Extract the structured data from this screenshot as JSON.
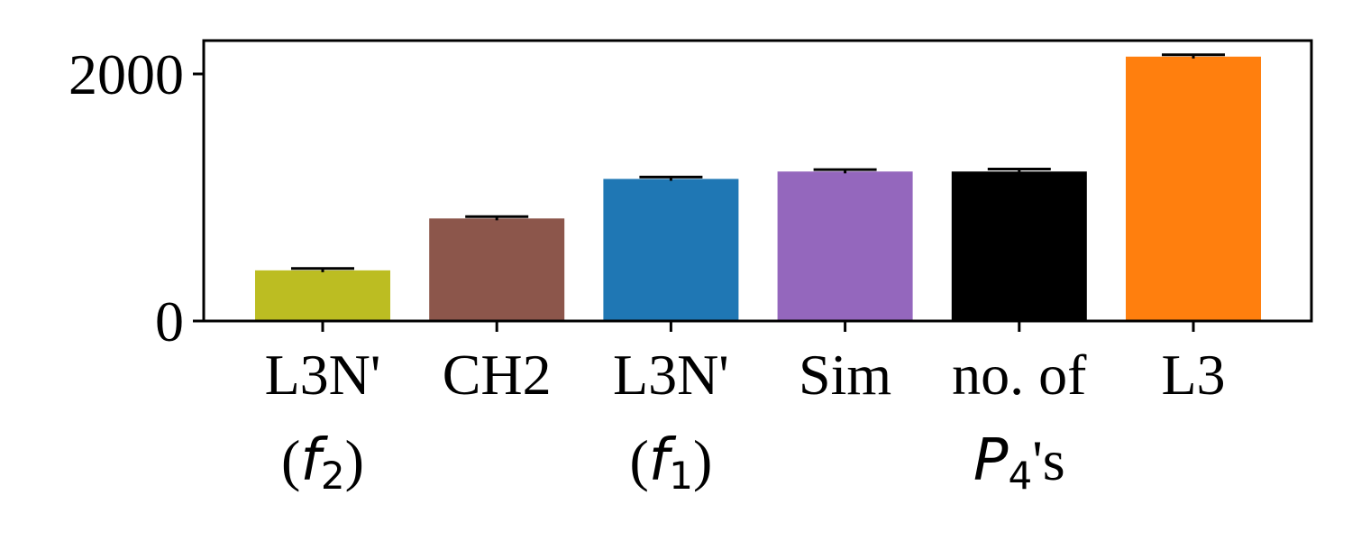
{
  "chart_data": {
    "type": "bar",
    "title": "",
    "xlabel": "",
    "ylabel": "",
    "ylim": [
      0,
      2270
    ],
    "yticks": [
      0,
      2000
    ],
    "legend": "none",
    "grid": false,
    "categories": [
      {
        "line1": "L3N'",
        "line2_prefix": "(",
        "line2_math": "f",
        "line2_sub": "2",
        "line2_suffix": ")"
      },
      {
        "line1": "CH2",
        "line2_prefix": "",
        "line2_math": "",
        "line2_sub": "",
        "line2_suffix": ""
      },
      {
        "line1": "L3N'",
        "line2_prefix": "(",
        "line2_math": "f",
        "line2_sub": "1",
        "line2_suffix": ")"
      },
      {
        "line1": "Sim",
        "line2_prefix": "",
        "line2_math": "",
        "line2_sub": "",
        "line2_suffix": ""
      },
      {
        "line1": "no. of",
        "line2_prefix": "",
        "line2_math": "P",
        "line2_sub": "4",
        "line2_suffix": "'s"
      },
      {
        "line1": "L3",
        "line2_prefix": "",
        "line2_math": "",
        "line2_sub": "",
        "line2_suffix": ""
      }
    ],
    "values": [
      410,
      830,
      1150,
      1210,
      1210,
      2140
    ],
    "errors": [
      15,
      15,
      15,
      15,
      20,
      15
    ],
    "colors": [
      "#bcbd22",
      "#8c564b",
      "#1f77b4",
      "#9467bd",
      "#000000",
      "#ff7f0e"
    ]
  }
}
